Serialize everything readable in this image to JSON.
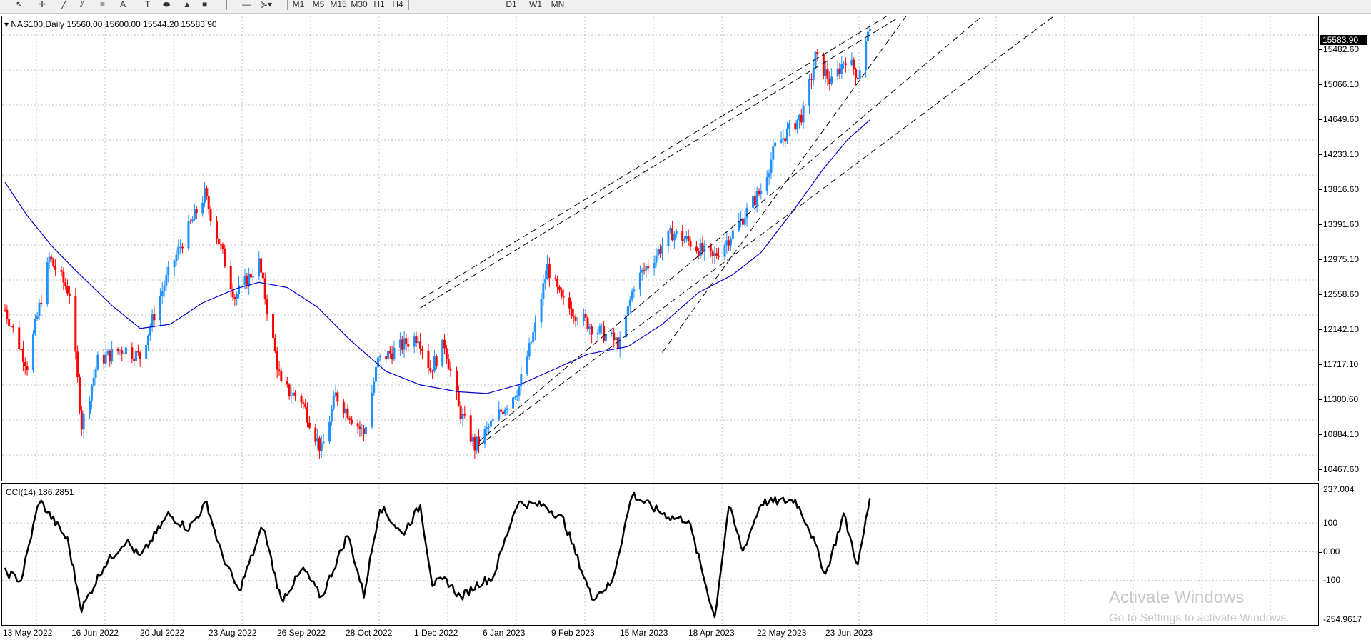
{
  "toolbar": {
    "items": [
      {
        "icon": "cursor-arrow-icon",
        "glyph": "↖"
      },
      {
        "icon": "crosshair-icon",
        "glyph": "✛"
      },
      {
        "icon": "trendline-icon",
        "glyph": "╱"
      },
      {
        "icon": "equidistant-channel-icon",
        "glyph": "⫽"
      },
      {
        "icon": "fibonacci-icon",
        "glyph": "≡"
      },
      {
        "icon": "text-tool-icon",
        "glyph": "A"
      },
      {
        "icon": "text-label-icon",
        "glyph": "T"
      },
      {
        "icon": "ellipse-icon",
        "glyph": "⬬"
      },
      {
        "icon": "triangle-icon",
        "glyph": "▲"
      },
      {
        "icon": "rectangle-icon",
        "glyph": "■"
      },
      {
        "icon": "vertical-line-icon",
        "glyph": "│"
      },
      {
        "icon": "horizontal-line-icon",
        "glyph": "—"
      },
      {
        "icon": "shapes-dropdown-icon",
        "glyph": "⋟▾"
      }
    ],
    "timeframes": [
      "M1",
      "M5",
      "M15",
      "M30",
      "H1",
      "H4",
      "D1",
      "W1",
      "MN"
    ]
  },
  "chart": {
    "header": "▾ NAS100,Daily  15560.00 15600.00 15544.20 15583.90",
    "last_price": "15583.90",
    "price_axis_labels": [
      "15482.60",
      "15066.10",
      "14649.60",
      "14233.10",
      "13816.60",
      "13391.60",
      "12975.10",
      "12558.60",
      "12142.10",
      "11717.10",
      "11300.60",
      "10884.10",
      "10467.60"
    ],
    "date_labels": [
      "13 May 2022",
      "16 Jun 2022",
      "20 Jul 2022",
      "23 Aug 2022",
      "26 Sep 2022",
      "28 Oct 2022",
      "1 Dec 2022",
      "6 Jan 2023",
      "9 Feb 2023",
      "15 Mar 2023",
      "18 Apr 2023",
      "22 May 2023",
      "23 Jun 2023"
    ],
    "colors": {
      "bull": "#1e90ff",
      "bear": "#ff0000",
      "ma": "#0000cd",
      "grid": "#c0c0c0",
      "cci": "#000000"
    }
  },
  "cci": {
    "header": "CCI(14) 186.2851",
    "axis_labels": [
      "237.004",
      "100",
      "0.00",
      "-100",
      "-254.9617"
    ]
  },
  "watermark": {
    "title": "Activate Windows",
    "subtitle": "Go to Settings to activate Windows."
  },
  "chart_data": {
    "type": "candlestick",
    "symbol": "NAS100",
    "timeframe": "Daily",
    "ohlc_last": {
      "open": 15560.0,
      "high": 15600.0,
      "low": 15544.2,
      "close": 15583.9
    },
    "price_range": [
      10300,
      15730
    ],
    "date_range": [
      "2022-05-09",
      "2023-07-12"
    ],
    "anchors": [
      [
        "2022-05-09",
        12300
      ],
      [
        "2022-05-20",
        11650
      ],
      [
        "2022-05-31",
        12900
      ],
      [
        "2022-06-10",
        12500
      ],
      [
        "2022-06-16",
        10950
      ],
      [
        "2022-06-24",
        11700
      ],
      [
        "2022-07-07",
        11850
      ],
      [
        "2022-07-15",
        11750
      ],
      [
        "2022-07-27",
        12600
      ],
      [
        "2022-08-05",
        13100
      ],
      [
        "2022-08-16",
        13650
      ],
      [
        "2022-08-23",
        13100
      ],
      [
        "2022-08-31",
        12450
      ],
      [
        "2022-09-12",
        12850
      ],
      [
        "2022-09-23",
        11400
      ],
      [
        "2022-10-03",
        11250
      ],
      [
        "2022-10-13",
        10650
      ],
      [
        "2022-10-20",
        11300
      ],
      [
        "2022-11-03",
        10850
      ],
      [
        "2022-11-10",
        11700
      ],
      [
        "2022-11-30",
        12000
      ],
      [
        "2022-12-06",
        11600
      ],
      [
        "2022-12-13",
        11900
      ],
      [
        "2022-12-20",
        11150
      ],
      [
        "2022-12-28",
        10700
      ],
      [
        "2023-01-05",
        10950
      ],
      [
        "2023-01-19",
        11400
      ],
      [
        "2023-01-27",
        12100
      ],
      [
        "2023-02-02",
        12800
      ],
      [
        "2023-02-09",
        12400
      ],
      [
        "2023-02-24",
        12100
      ],
      [
        "2023-03-10",
        11900
      ],
      [
        "2023-03-17",
        12600
      ],
      [
        "2023-03-31",
        13050
      ],
      [
        "2023-04-05",
        13200
      ],
      [
        "2023-04-13",
        13100
      ],
      [
        "2023-04-25",
        12900
      ],
      [
        "2023-05-05",
        13200
      ],
      [
        "2023-05-19",
        13700
      ],
      [
        "2023-05-26",
        14200
      ],
      [
        "2023-06-09",
        14600
      ],
      [
        "2023-06-15",
        15250
      ],
      [
        "2023-06-23",
        14950
      ],
      [
        "2023-06-30",
        15250
      ],
      [
        "2023-07-06",
        15050
      ],
      [
        "2023-07-12",
        15583.9
      ]
    ],
    "moving_average_path": [
      [
        "2022-05-09",
        13790
      ],
      [
        "2022-05-20",
        13400
      ],
      [
        "2022-06-01",
        13050
      ],
      [
        "2022-06-13",
        12760
      ],
      [
        "2022-07-01",
        12350
      ],
      [
        "2022-07-15",
        12080
      ],
      [
        "2022-07-30",
        12130
      ],
      [
        "2022-08-15",
        12380
      ],
      [
        "2022-09-01",
        12550
      ],
      [
        "2022-09-12",
        12620
      ],
      [
        "2022-09-26",
        12560
      ],
      [
        "2022-10-11",
        12330
      ],
      [
        "2022-10-27",
        11950
      ],
      [
        "2022-11-14",
        11580
      ],
      [
        "2022-12-01",
        11420
      ],
      [
        "2022-12-20",
        11340
      ],
      [
        "2023-01-03",
        11320
      ],
      [
        "2023-01-20",
        11430
      ],
      [
        "2023-02-07",
        11620
      ],
      [
        "2023-02-22",
        11780
      ],
      [
        "2023-03-14",
        11870
      ],
      [
        "2023-03-31",
        12130
      ],
      [
        "2023-04-18",
        12500
      ],
      [
        "2023-05-05",
        12710
      ],
      [
        "2023-05-19",
        12970
      ],
      [
        "2023-06-05",
        13490
      ],
      [
        "2023-06-19",
        13950
      ],
      [
        "2023-07-01",
        14290
      ],
      [
        "2023-07-12",
        14520
      ]
    ],
    "trend_lines": [
      [
        [
          "2022-12-01",
          12420
        ],
        [
          "2023-07-25",
          15800
        ]
      ],
      [
        [
          "2022-12-01",
          12320
        ],
        [
          "2023-07-25",
          15700
        ]
      ],
      [
        [
          "2022-12-30",
          10760
        ],
        [
          "2023-09-09",
          15800
        ]
      ],
      [
        [
          "2022-12-30",
          10710
        ],
        [
          "2023-10-15",
          15800
        ]
      ],
      [
        [
          "2023-03-31",
          11800
        ],
        [
          "2023-08-01",
          15800
        ]
      ]
    ],
    "cci_anchors": [
      [
        "2022-05-09",
        -70
      ],
      [
        "2022-05-17",
        -100
      ],
      [
        "2022-05-26",
        180
      ],
      [
        "2022-06-09",
        40
      ],
      [
        "2022-06-16",
        -200
      ],
      [
        "2022-06-27",
        -50
      ],
      [
        "2022-07-08",
        40
      ],
      [
        "2022-07-15",
        -20
      ],
      [
        "2022-07-29",
        130
      ],
      [
        "2022-08-08",
        80
      ],
      [
        "2022-08-17",
        170
      ],
      [
        "2022-08-24",
        0
      ],
      [
        "2022-09-02",
        -140
      ],
      [
        "2022-09-14",
        90
      ],
      [
        "2022-09-23",
        -170
      ],
      [
        "2022-10-04",
        -60
      ],
      [
        "2022-10-13",
        -160
      ],
      [
        "2022-10-26",
        60
      ],
      [
        "2022-11-03",
        -150
      ],
      [
        "2022-11-11",
        160
      ],
      [
        "2022-11-22",
        60
      ],
      [
        "2022-12-01",
        160
      ],
      [
        "2022-12-07",
        -110
      ],
      [
        "2022-12-14",
        -100
      ],
      [
        "2022-12-21",
        -160
      ],
      [
        "2022-12-30",
        -110
      ],
      [
        "2023-01-06",
        -90
      ],
      [
        "2023-01-18",
        170
      ],
      [
        "2023-02-01",
        160
      ],
      [
        "2023-02-10",
        110
      ],
      [
        "2023-02-24",
        -160
      ],
      [
        "2023-03-06",
        -110
      ],
      [
        "2023-03-16",
        200
      ],
      [
        "2023-03-27",
        150
      ],
      [
        "2023-04-04",
        120
      ],
      [
        "2023-04-13",
        110
      ],
      [
        "2023-04-26",
        -230
      ],
      [
        "2023-05-03",
        160
      ],
      [
        "2023-05-10",
        0
      ],
      [
        "2023-05-19",
        170
      ],
      [
        "2023-06-05",
        180
      ],
      [
        "2023-06-12",
        80
      ],
      [
        "2023-06-20",
        -80
      ],
      [
        "2023-06-29",
        130
      ],
      [
        "2023-07-06",
        -50
      ],
      [
        "2023-07-12",
        186.2851
      ]
    ],
    "cci_range": [
      -254.9617,
      237.004
    ]
  }
}
